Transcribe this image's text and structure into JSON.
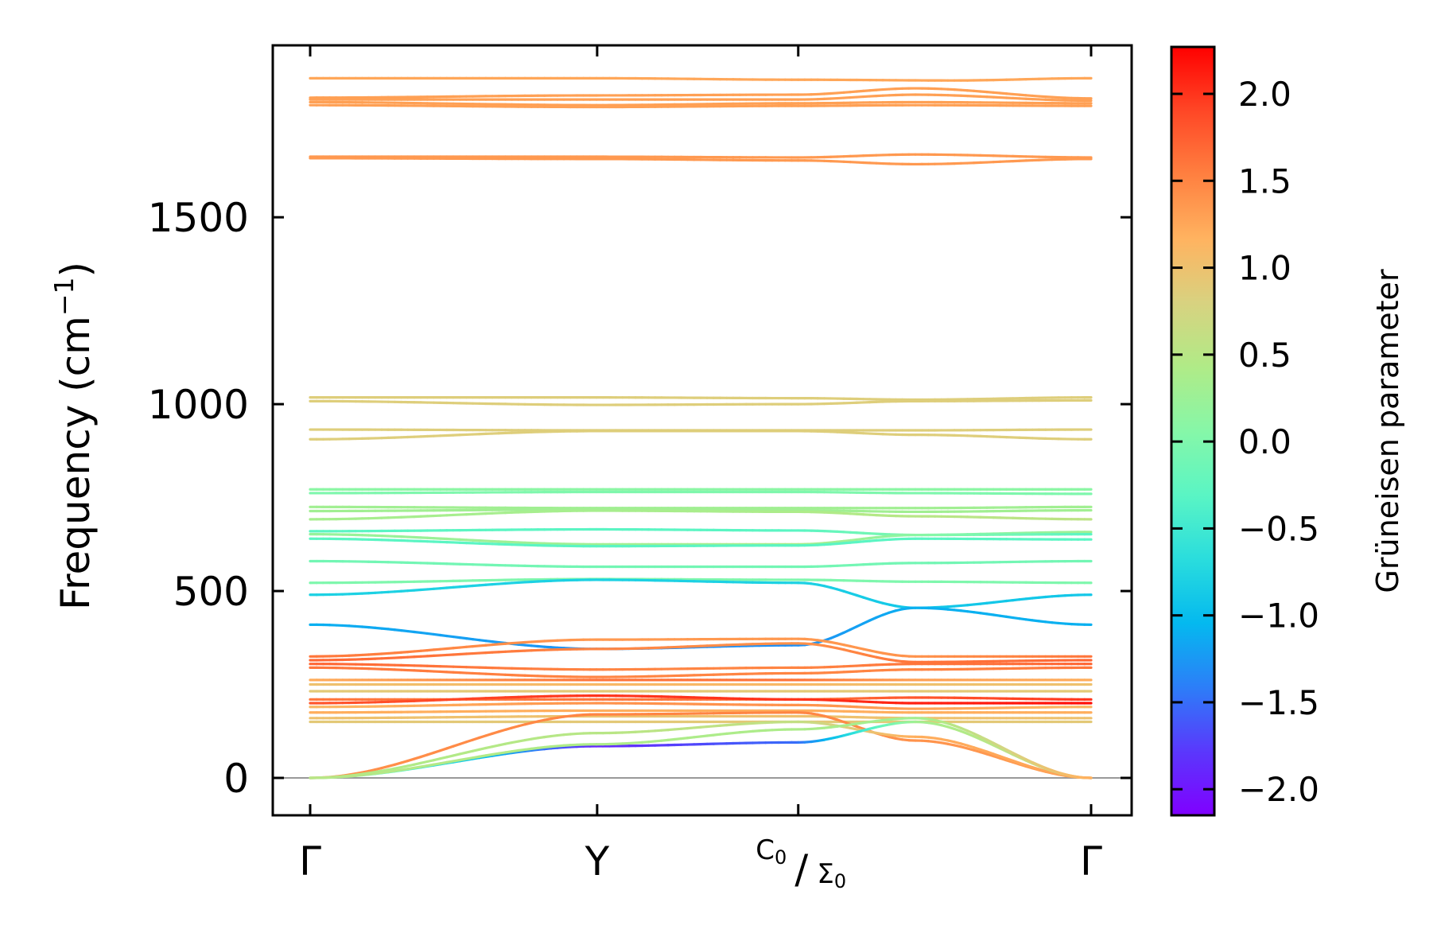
{
  "chart_data": {
    "type": "line",
    "title": "",
    "xlabel": "",
    "ylabel": "Frequency (cm",
    "ylabel_exp": "−1",
    "ylabel_close": ")",
    "ylim": [
      -100,
      1960
    ],
    "yticks": [
      0,
      500,
      1000,
      1500
    ],
    "ytick_labels": [
      "0",
      "500",
      "1000",
      "1500"
    ],
    "x_range": [
      0,
      4
    ],
    "xticks": [
      {
        "x": 0,
        "label": "Γ"
      },
      {
        "x": 1.47,
        "label": "Y"
      },
      {
        "x": 2.5,
        "label_top": "C",
        "sub_top": "0",
        "slash": "/",
        "label_bot": "Σ",
        "sub_bot": "0"
      },
      {
        "x": 4.0,
        "label": "Γ"
      }
    ],
    "grid": false,
    "zero_line": 0,
    "colorbar": {
      "label": "Grüneisen parameter",
      "range": [
        -2.15,
        2.27
      ],
      "ticks": [
        2.0,
        1.5,
        1.0,
        0.5,
        0.0,
        -0.5,
        -1.0,
        -1.5,
        -2.0
      ],
      "tick_labels": [
        "2.0",
        "1.5",
        "1.0",
        "0.5",
        "0.0",
        "−0.5",
        "−1.0",
        "−1.5",
        "−2.0"
      ],
      "colormap": [
        "#8000ff",
        "#5a38fc",
        "#2c7ef8",
        "#04b9ef",
        "#2adddd",
        "#5af5c4",
        "#86f7a8",
        "#b0eb87",
        "#d8d280",
        "#ffb360",
        "#ff8040",
        "#ff4726",
        "#ff0000"
      ]
    },
    "series": [
      {
        "name": "band-1",
        "x": [
          0,
          1.47,
          2.5,
          3.3,
          4.0
        ],
        "y": [
          1872,
          1872,
          1868,
          1866,
          1872
        ],
        "g": [
          1.25,
          1.25,
          1.25,
          1.25,
          1.25
        ]
      },
      {
        "name": "band-2",
        "x": [
          0,
          1.47,
          2.5,
          3.1,
          4.0
        ],
        "y": [
          1820,
          1826,
          1828,
          1845,
          1818
        ],
        "g": [
          1.3,
          1.3,
          1.3,
          1.3,
          1.3
        ]
      },
      {
        "name": "band-3",
        "x": [
          0,
          1.47,
          2.5,
          3.1,
          4.0
        ],
        "y": [
          1815,
          1815,
          1815,
          1828,
          1812
        ],
        "g": [
          1.3,
          1.3,
          1.3,
          1.3,
          1.3
        ]
      },
      {
        "name": "band-4",
        "x": [
          0,
          1.47,
          2.5,
          3.1,
          4.0
        ],
        "y": [
          1808,
          1800,
          1805,
          1808,
          1805
        ],
        "g": [
          1.3,
          1.3,
          1.3,
          1.3,
          1.3
        ]
      },
      {
        "name": "band-5",
        "x": [
          0,
          1.47,
          2.5,
          3.1,
          4.0
        ],
        "y": [
          1800,
          1795,
          1798,
          1800,
          1798
        ],
        "g": [
          1.3,
          1.3,
          1.3,
          1.3,
          1.3
        ]
      },
      {
        "name": "band-6",
        "x": [
          0,
          1.47,
          2.5,
          3.1,
          4.0
        ],
        "y": [
          1662,
          1662,
          1660,
          1668,
          1660
        ],
        "g": [
          1.35,
          1.35,
          1.35,
          1.35,
          1.35
        ]
      },
      {
        "name": "band-7",
        "x": [
          0,
          1.47,
          2.5,
          3.1,
          4.0
        ],
        "y": [
          1658,
          1656,
          1652,
          1642,
          1656
        ],
        "g": [
          1.35,
          1.35,
          1.35,
          1.35,
          1.35
        ]
      },
      {
        "name": "band-8",
        "x": [
          0,
          1.47,
          2.5,
          3.1,
          4.0
        ],
        "y": [
          1018,
          1018,
          1016,
          1012,
          1018
        ],
        "g": [
          0.85,
          0.85,
          0.85,
          0.85,
          0.85
        ]
      },
      {
        "name": "band-9",
        "x": [
          0,
          1.47,
          2.5,
          3.1,
          4.0
        ],
        "y": [
          1008,
          998,
          1000,
          1008,
          1010
        ],
        "g": [
          0.85,
          0.85,
          0.85,
          0.85,
          0.85
        ]
      },
      {
        "name": "band-10",
        "x": [
          0,
          1.47,
          2.5,
          3.1,
          4.0
        ],
        "y": [
          932,
          930,
          930,
          930,
          932
        ],
        "g": [
          0.85,
          0.85,
          0.85,
          0.85,
          0.85
        ]
      },
      {
        "name": "band-11",
        "x": [
          0,
          1.47,
          2.5,
          3.1,
          4.0
        ],
        "y": [
          906,
          928,
          928,
          918,
          906
        ],
        "g": [
          0.85,
          0.85,
          0.85,
          0.85,
          0.85
        ]
      },
      {
        "name": "band-12",
        "x": [
          0,
          1.47,
          2.5,
          3.1,
          4.0
        ],
        "y": [
          772,
          772,
          772,
          772,
          772
        ],
        "g": [
          0.1,
          0.1,
          0.1,
          0.1,
          0.1
        ]
      },
      {
        "name": "band-13",
        "x": [
          0,
          1.47,
          2.5,
          3.1,
          4.0
        ],
        "y": [
          762,
          765,
          765,
          762,
          760
        ],
        "g": [
          0.0,
          0.0,
          0.0,
          0.0,
          0.0
        ]
      },
      {
        "name": "band-14",
        "x": [
          0,
          1.47,
          2.5,
          3.1,
          4.0
        ],
        "y": [
          725,
          722,
          722,
          722,
          725
        ],
        "g": [
          0.3,
          0.3,
          0.3,
          0.3,
          0.3
        ]
      },
      {
        "name": "band-15",
        "x": [
          0,
          1.47,
          2.5,
          3.1,
          4.0
        ],
        "y": [
          714,
          718,
          716,
          712,
          716
        ],
        "g": [
          0.3,
          0.3,
          0.3,
          0.3,
          0.3
        ]
      },
      {
        "name": "band-16",
        "x": [
          0,
          1.47,
          2.5,
          3.1,
          4.0
        ],
        "y": [
          692,
          715,
          712,
          700,
          692
        ],
        "g": [
          0.35,
          0.35,
          0.4,
          0.5,
          0.55
        ]
      },
      {
        "name": "band-17",
        "x": [
          0,
          1.47,
          2.5,
          3.1,
          4.0
        ],
        "y": [
          660,
          665,
          662,
          650,
          658
        ],
        "g": [
          -0.3,
          -0.3,
          -0.3,
          0.0,
          0.3
        ]
      },
      {
        "name": "band-18",
        "x": [
          0,
          1.47,
          2.5,
          3.1,
          4.0
        ],
        "y": [
          652,
          625,
          625,
          650,
          652
        ],
        "g": [
          0.2,
          0.3,
          0.4,
          0.1,
          -0.3
        ]
      },
      {
        "name": "band-19",
        "x": [
          0,
          1.47,
          2.5,
          3.1,
          4.0
        ],
        "y": [
          640,
          620,
          622,
          640,
          638
        ],
        "g": [
          -0.3,
          -0.3,
          -0.3,
          -0.3,
          -0.3
        ]
      },
      {
        "name": "band-20",
        "x": [
          0,
          1.47,
          2.5,
          3.1,
          4.0
        ],
        "y": [
          580,
          565,
          565,
          575,
          580
        ],
        "g": [
          -0.1,
          -0.1,
          -0.1,
          -0.1,
          -0.1
        ]
      },
      {
        "name": "band-21",
        "x": [
          0,
          1.47,
          2.5,
          3.1,
          4.0
        ],
        "y": [
          522,
          532,
          530,
          525,
          522
        ],
        "g": [
          0.0,
          0.0,
          0.0,
          0.0,
          0.0
        ]
      },
      {
        "name": "band-22",
        "x": [
          0,
          1.47,
          2.5,
          3.1,
          4.0
        ],
        "y": [
          490,
          530,
          522,
          455,
          490
        ],
        "g": [
          -0.8,
          -0.8,
          -0.8,
          -0.9,
          -0.9
        ]
      },
      {
        "name": "band-23",
        "x": [
          0,
          1.47,
          2.5,
          3.1,
          4.0
        ],
        "y": [
          410,
          345,
          355,
          455,
          410
        ],
        "g": [
          -1.1,
          -1.3,
          -1.3,
          -1.1,
          -1.1
        ]
      },
      {
        "name": "band-24",
        "x": [
          0,
          1.47,
          2.5,
          3.1,
          4.0
        ],
        "y": [
          325,
          370,
          372,
          325,
          325
        ],
        "g": [
          1.6,
          1.35,
          1.35,
          1.4,
          1.6
        ]
      },
      {
        "name": "band-25",
        "x": [
          0,
          1.47,
          2.5,
          3.1,
          4.0
        ],
        "y": [
          315,
          345,
          360,
          310,
          315
        ],
        "g": [
          1.7,
          1.5,
          1.4,
          1.6,
          1.7
        ]
      },
      {
        "name": "band-26",
        "x": [
          0,
          1.47,
          2.5,
          3.1,
          4.0
        ],
        "y": [
          305,
          290,
          295,
          305,
          305
        ],
        "g": [
          1.7,
          1.5,
          1.5,
          1.6,
          1.7
        ]
      },
      {
        "name": "band-27",
        "x": [
          0,
          1.47,
          2.5,
          3.1,
          4.0
        ],
        "y": [
          295,
          270,
          280,
          290,
          295
        ],
        "g": [
          1.6,
          1.5,
          1.5,
          1.5,
          1.6
        ]
      },
      {
        "name": "band-28",
        "x": [
          0,
          1.47,
          2.5,
          3.1,
          4.0
        ],
        "y": [
          262,
          262,
          262,
          262,
          262
        ],
        "g": [
          1.2,
          1.6,
          1.6,
          1.3,
          1.2
        ]
      },
      {
        "name": "band-29",
        "x": [
          0,
          1.47,
          2.5,
          3.1,
          4.0
        ],
        "y": [
          250,
          250,
          250,
          250,
          250
        ],
        "g": [
          1.0,
          1.1,
          1.1,
          1.0,
          1.0
        ]
      },
      {
        "name": "band-30",
        "x": [
          0,
          1.47,
          2.5,
          3.1,
          4.0
        ],
        "y": [
          232,
          232,
          232,
          232,
          232
        ],
        "g": [
          0.9,
          0.9,
          0.9,
          0.9,
          0.9
        ]
      },
      {
        "name": "band-31",
        "x": [
          0,
          1.47,
          2.5,
          3.1,
          4.0
        ],
        "y": [
          210,
          210,
          210,
          215,
          210
        ],
        "g": [
          1.6,
          1.6,
          1.6,
          1.8,
          2.0
        ]
      },
      {
        "name": "band-32",
        "x": [
          0,
          1.47,
          2.5,
          3.1,
          4.0
        ],
        "y": [
          200,
          220,
          210,
          200,
          200
        ],
        "g": [
          1.8,
          2.0,
          2.0,
          2.1,
          2.2
        ]
      },
      {
        "name": "band-33",
        "x": [
          0,
          1.47,
          2.5,
          3.1,
          4.0
        ],
        "y": [
          190,
          200,
          195,
          185,
          190
        ],
        "g": [
          1.1,
          1.4,
          1.4,
          1.3,
          1.1
        ]
      },
      {
        "name": "band-34",
        "x": [
          0,
          1.47,
          2.5,
          3.1,
          4.0
        ],
        "y": [
          175,
          180,
          180,
          175,
          175
        ],
        "g": [
          1.2,
          1.2,
          1.2,
          1.2,
          1.2
        ]
      },
      {
        "name": "band-35",
        "x": [
          0,
          1.47,
          2.5,
          3.1,
          4.0
        ],
        "y": [
          160,
          165,
          165,
          160,
          160
        ],
        "g": [
          1.0,
          1.0,
          1.0,
          1.0,
          1.0
        ]
      },
      {
        "name": "band-36",
        "x": [
          0,
          1.47,
          2.5,
          3.1,
          4.0
        ],
        "y": [
          150,
          150,
          150,
          150,
          150
        ],
        "g": [
          0.9,
          0.9,
          0.9,
          0.9,
          0.9
        ]
      },
      {
        "name": "band-37",
        "x": [
          0,
          1.47,
          2.5,
          3.1,
          4.0
        ],
        "y": [
          0,
          170,
          175,
          100,
          0
        ],
        "g": [
          1.4,
          1.5,
          1.5,
          1.4,
          1.3
        ]
      },
      {
        "name": "band-38",
        "x": [
          0,
          1.47,
          2.5,
          3.1,
          4.0
        ],
        "y": [
          0,
          120,
          150,
          110,
          0
        ],
        "g": [
          0.4,
          0.5,
          0.6,
          1.2,
          1.3
        ]
      },
      {
        "name": "band-39",
        "x": [
          0,
          1.47,
          2.5,
          3.1,
          4.0
        ],
        "y": [
          0,
          85,
          95,
          150,
          0
        ],
        "g": [
          0.4,
          -1.9,
          -1.5,
          0.3,
          0.8
        ]
      },
      {
        "name": "band-40",
        "x": [
          0,
          1.47,
          2.5,
          3.1,
          4.0
        ],
        "y": [
          0,
          90,
          130,
          160,
          0
        ],
        "g": [
          0.5,
          0.4,
          0.4,
          0.3,
          1.2
        ]
      }
    ]
  }
}
